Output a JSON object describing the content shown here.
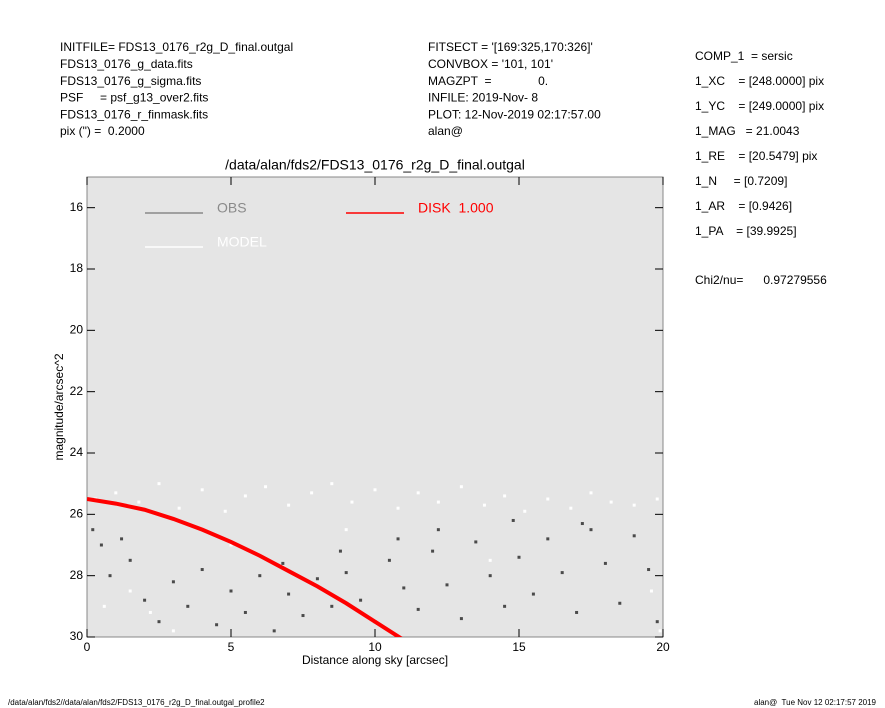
{
  "chart_data": {
    "type": "scatter",
    "header_left": [
      "INITFILE= FDS13_0176_r2g_D_final.outgal",
      "FDS13_0176_g_data.fits",
      "FDS13_0176_g_sigma.fits",
      "PSF     = psf_g13_over2.fits",
      "FDS13_0176_r_finmask.fits",
      "pix (\") =  0.2000"
    ],
    "header_middle": [
      "FITSECT = '[169:325,170:326]'",
      "CONVBOX = '101, 101'",
      "MAGZPT  =              0.",
      "INFILE: 2019-Nov- 8",
      "PLOT: 12-Nov-2019 02:17:57.00",
      "alan@"
    ],
    "params": [
      "COMP_1  = sersic",
      "1_XC    = [248.0000] pix",
      "1_YC    = [249.0000] pix",
      "1_MAG   = 21.0043",
      "1_RE    = [20.5479] pix",
      "1_N     = [0.7209]",
      "1_AR    = [0.9426]",
      "1_PA    = [39.9925]"
    ],
    "chi2": "Chi2/nu=      0.97279556",
    "title": "/data/alan/fds2/FDS13_0176_r2g_D_final.outgal",
    "xlabel": "Distance along sky [arcsec]",
    "ylabel": "magnitude/arcsec^2",
    "footer_left": "/data/alan/fds2//data/alan/fds2/FDS13_0176_r2g_D_final.outgal_profile2",
    "footer_right": "alan@  Tue Nov 12 02:17:57 2019",
    "xlim": [
      0,
      20
    ],
    "xticks": [
      0,
      5,
      10,
      15,
      20
    ],
    "ylim": [
      30,
      15
    ],
    "yticks": [
      16,
      18,
      20,
      22,
      24,
      26,
      28,
      30
    ],
    "series": [
      {
        "name": "OBS",
        "type": "scatter",
        "color": "#4a4a4a",
        "legend_color": "#8a8a8a",
        "x": [
          0.2,
          0.5,
          0.8,
          1.2,
          1.5,
          2.0,
          2.5,
          3.0,
          3.5,
          4.0,
          4.5,
          5.0,
          5.5,
          6.0,
          6.5,
          7.0,
          7.5,
          8.0,
          8.5,
          9.0,
          9.5,
          10.0,
          10.5,
          11.0,
          11.5,
          12.0,
          12.5,
          13.0,
          13.5,
          14.0,
          14.5,
          15.0,
          15.5,
          16.0,
          16.5,
          17.0,
          17.5,
          18.0,
          18.5,
          19.0,
          19.5,
          19.8,
          12.2,
          14.8,
          17.2,
          10.8,
          8.8,
          6.8
        ],
        "values": [
          26.5,
          27.0,
          28.0,
          26.8,
          27.5,
          28.8,
          29.5,
          28.2,
          29.0,
          27.8,
          29.6,
          28.5,
          29.2,
          28.0,
          29.8,
          28.6,
          29.3,
          28.1,
          29.0,
          27.9,
          28.8,
          29.5,
          27.5,
          28.4,
          29.1,
          27.2,
          28.3,
          29.4,
          26.9,
          28.0,
          29.0,
          27.4,
          28.6,
          26.8,
          27.9,
          29.2,
          26.5,
          27.6,
          28.9,
          26.7,
          27.8,
          29.5,
          26.5,
          26.2,
          26.3,
          26.8,
          27.2,
          27.6
        ]
      },
      {
        "name": "MODEL",
        "type": "scatter",
        "color": "#ffffff",
        "legend_color": "#ffffff",
        "x": [
          0.3,
          1.0,
          1.8,
          2.5,
          3.2,
          4.0,
          4.8,
          5.5,
          6.2,
          7.0,
          7.8,
          8.5,
          9.2,
          10.0,
          10.8,
          11.5,
          12.2,
          13.0,
          13.8,
          14.5,
          15.2,
          16.0,
          16.8,
          17.5,
          18.2,
          19.0,
          19.8,
          1.5,
          2.2,
          3.0,
          0.6,
          19.6,
          19.9,
          5.0,
          9.0,
          14.0
        ],
        "values": [
          25.5,
          25.3,
          25.6,
          25.0,
          25.8,
          25.2,
          25.9,
          25.4,
          25.1,
          25.7,
          25.3,
          25.0,
          25.6,
          25.2,
          25.8,
          25.3,
          25.6,
          25.1,
          25.7,
          25.4,
          25.9,
          25.5,
          25.8,
          25.3,
          25.6,
          25.7,
          25.5,
          28.5,
          29.2,
          29.8,
          29.0,
          28.5,
          29.8,
          27.0,
          26.5,
          27.5
        ]
      },
      {
        "name": "DISK  1.000",
        "type": "line",
        "color": "#ff0000",
        "legend_color": "#ff0000",
        "x": [
          0,
          1,
          2,
          3,
          4,
          5,
          6,
          7,
          8,
          9,
          10,
          11,
          11.3
        ],
        "values": [
          25.5,
          25.65,
          25.85,
          26.15,
          26.5,
          26.9,
          27.35,
          27.85,
          28.35,
          28.9,
          29.5,
          30.1,
          30.3
        ]
      }
    ]
  }
}
